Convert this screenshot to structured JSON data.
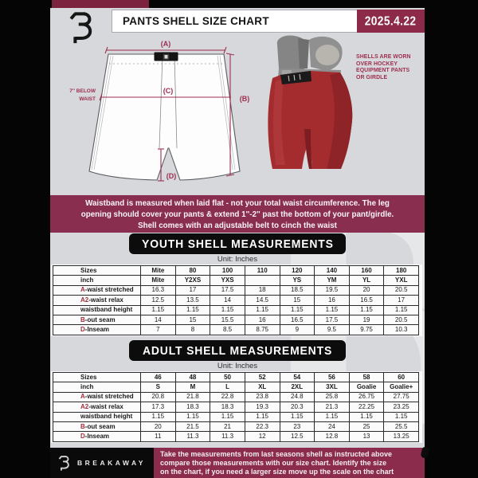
{
  "header": {
    "title": "PANTS SHELL SIZE CHART",
    "date": "2025.4.22"
  },
  "diagram": {
    "labels": {
      "a": "(A)",
      "b": "(B)",
      "c": "(C)",
      "d": "(D)"
    },
    "waist_note_line1": "7'' BELOW",
    "waist_note_line2": "WAIST",
    "side_note": "SHELLS ARE WORN\nOVER HOCKEY\nEQUIPMENT PANTS\nOR GIRDLE"
  },
  "notice_banner": "Waistband is measured when laid flat - not your total waist circumference. The leg\nopening should cover your pants & extend 1''-2'' past the bottom of your pant/girdle.\nShell comes with an adjustable belt to cinch the waist",
  "youth": {
    "title": "YOUTH SHELL MEASUREMENTS",
    "unit": "Unit: Inches",
    "table": {
      "rows": [
        {
          "prefix": "",
          "label": "Sizes",
          "header": true,
          "values": [
            "Mite",
            "80",
            "100",
            "110",
            "120",
            "140",
            "160",
            "180"
          ]
        },
        {
          "prefix": "",
          "label": "inch",
          "header": true,
          "values": [
            "Mite",
            "Y2XS",
            "YXS",
            "",
            "YS",
            "YM",
            "YL",
            "YXL"
          ]
        },
        {
          "prefix": "A",
          "label": "-waist stretched",
          "header": false,
          "values": [
            "16.3",
            "17",
            "17.5",
            "18",
            "18.5",
            "19.5",
            "20",
            "20.5"
          ]
        },
        {
          "prefix": "A2",
          "label": "-waist relax",
          "header": false,
          "values": [
            "12.5",
            "13.5",
            "14",
            "14.5",
            "15",
            "16",
            "16.5",
            "17"
          ]
        },
        {
          "prefix": "",
          "label": "waistband height",
          "header": false,
          "values": [
            "1.15",
            "1.15",
            "1.15",
            "1.15",
            "1.15",
            "1.15",
            "1.15",
            "1.15"
          ]
        },
        {
          "prefix": "B",
          "label": "-out seam",
          "header": false,
          "values": [
            "14",
            "15",
            "15.5",
            "16",
            "16.5",
            "17.5",
            "19",
            "20.5"
          ]
        },
        {
          "prefix": "D",
          "label": "-Inseam",
          "header": false,
          "values": [
            "7",
            "8",
            "8.5",
            "8.75",
            "9",
            "9.5",
            "9.75",
            "10.3"
          ]
        }
      ]
    }
  },
  "adult": {
    "title": "ADULT SHELL MEASUREMENTS",
    "unit": "Unit: Inches",
    "table": {
      "rows": [
        {
          "prefix": "",
          "label": "Sizes",
          "header": true,
          "values": [
            "46",
            "48",
            "50",
            "52",
            "54",
            "56",
            "58",
            "60"
          ]
        },
        {
          "prefix": "",
          "label": "inch",
          "header": true,
          "values": [
            "S",
            "M",
            "L",
            "XL",
            "2XL",
            "3XL",
            "Goalie",
            "Goalie+"
          ]
        },
        {
          "prefix": "A",
          "label": "-waist stretched",
          "header": false,
          "values": [
            "20.8",
            "21.8",
            "22.8",
            "23.8",
            "24.8",
            "25.8",
            "26.75",
            "27.75"
          ]
        },
        {
          "prefix": "A2",
          "label": "-waist relax",
          "header": false,
          "values": [
            "17.3",
            "18.3",
            "18.3",
            "19.3",
            "20.3",
            "21.3",
            "22.25",
            "23.25"
          ]
        },
        {
          "prefix": "",
          "label": "waistband height",
          "header": false,
          "values": [
            "1.15",
            "1.15",
            "1.15",
            "1.15",
            "1.15",
            "1.15",
            "1.15",
            "1.15"
          ]
        },
        {
          "prefix": "B",
          "label": "-out seam",
          "header": false,
          "values": [
            "20",
            "21.5",
            "21",
            "22.3",
            "23",
            "24",
            "25",
            "25.5"
          ]
        },
        {
          "prefix": "D",
          "label": "-Inseam",
          "header": false,
          "values": [
            "11",
            "11.3",
            "11.3",
            "12",
            "12.5",
            "12.8",
            "13",
            "13.25"
          ]
        }
      ]
    }
  },
  "footer": {
    "brand": "BREAKAWAY",
    "note": "Take the measurements from last seasons shell as instructed above\ncompare those measurements  with our size chart. Identify the size\non the chart, if you need a larger size move up the scale on the chart"
  },
  "watermark_letter": "B",
  "colors": {
    "maroon_banner": "#8a2e4f",
    "maroon_date": "#8d2a49",
    "maroon_accent": "#7c2340",
    "diagram_line": "#9d2e4f",
    "table_prefix_red": "#a12f3d",
    "shell_red": "#a42c2f",
    "black_panel": "#0c0c0c",
    "sheet_gray": "#d7d8db"
  }
}
